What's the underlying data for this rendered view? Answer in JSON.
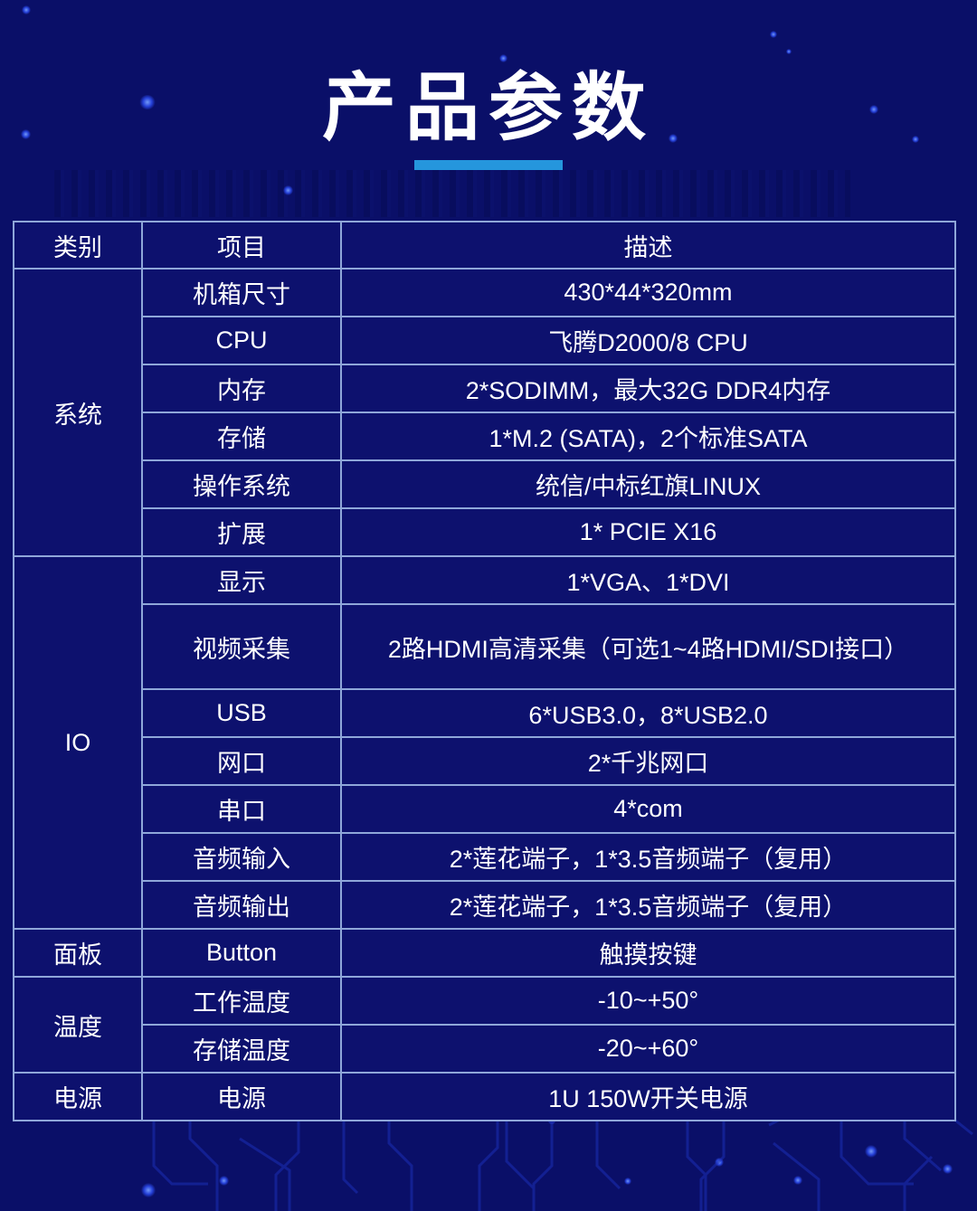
{
  "page": {
    "title": "产品参数"
  },
  "table": {
    "headers": [
      "类别",
      "项目",
      "描述"
    ],
    "groups": [
      {
        "category": "系统",
        "rows": [
          {
            "item": "机箱尺寸",
            "desc": "430*44*320mm"
          },
          {
            "item": "CPU",
            "desc": "飞腾D2000/8 CPU"
          },
          {
            "item": "内存",
            "desc": "2*SODIMM，最大32G DDR4内存"
          },
          {
            "item": "存储",
            "desc": "1*M.2 (SATA)，2个标准SATA"
          },
          {
            "item": "操作系统",
            "desc": "统信/中标红旗LINUX"
          },
          {
            "item": "扩展",
            "desc": "1* PCIE X16"
          }
        ]
      },
      {
        "category": "IO",
        "rows": [
          {
            "item": "显示",
            "desc": "1*VGA、1*DVI"
          },
          {
            "item": "视频采集",
            "desc": "2路HDMI高清采集（可选1~4路HDMI/SDI接口）",
            "tall": true
          },
          {
            "item": "USB",
            "desc": "6*USB3.0，8*USB2.0"
          },
          {
            "item": "网口",
            "desc": "2*千兆网口"
          },
          {
            "item": "串口",
            "desc": "4*com"
          },
          {
            "item": "音频输入",
            "desc": "2*莲花端子，1*3.5音频端子（复用）"
          },
          {
            "item": "音频输出",
            "desc": "2*莲花端子，1*3.5音频端子（复用）"
          }
        ]
      },
      {
        "category": "面板",
        "rows": [
          {
            "item": "Button",
            "desc": "触摸按键"
          }
        ]
      },
      {
        "category": "温度",
        "rows": [
          {
            "item": "工作温度",
            "desc": "-10~+50°"
          },
          {
            "item": "存储温度",
            "desc": "-20~+60°"
          }
        ]
      },
      {
        "category": "电源",
        "rows": [
          {
            "item": "电源",
            "desc": "1U 150W开关电源"
          }
        ]
      }
    ]
  },
  "colors": {
    "page_bg": "#0a0f68",
    "cell_bg": "#0d116e",
    "table_border": "#8fa7d9",
    "title_text": "#ffffff",
    "cell_text": "#ffffff",
    "accent_bar": "#2596dd",
    "glow_dot": "#2f52ff",
    "circuit_line": "#1d2eb4"
  }
}
